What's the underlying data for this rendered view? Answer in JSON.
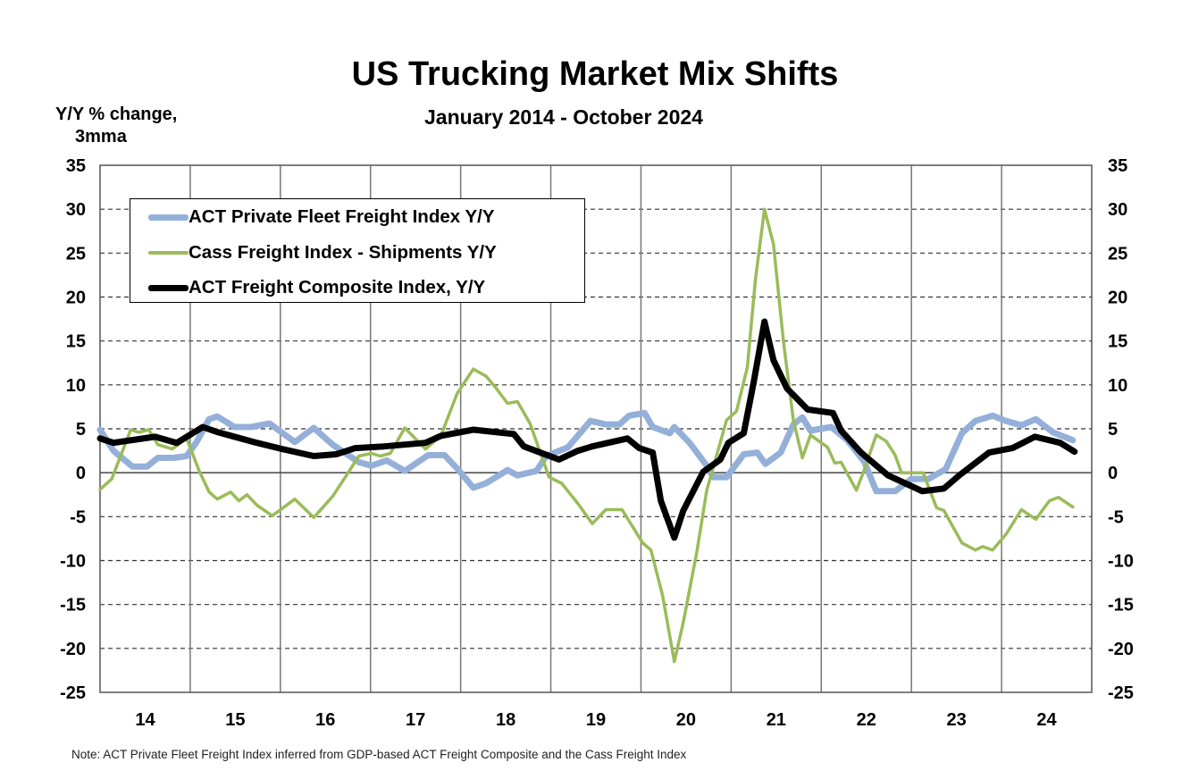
{
  "chart_data": {
    "type": "line",
    "title": "US Trucking Market Mix Shifts",
    "subtitle": "January 2014 - October 2024",
    "ylabel": [
      "Y/Y % change,",
      "3mma"
    ],
    "xlabel": "",
    "ylim": [
      -25,
      35
    ],
    "xlim": [
      2014,
      2025
    ],
    "yticks": [
      "35",
      "30",
      "25",
      "20",
      "15",
      "10",
      "5",
      "0",
      "-5",
      "-10",
      "-15",
      "-20",
      "-25"
    ],
    "xticks": [
      "14",
      "15",
      "16",
      "17",
      "18",
      "19",
      "20",
      "21",
      "22",
      "23",
      "24"
    ],
    "grid": true,
    "legend_position": "top-left",
    "note": "Note: ACT Private Fleet Freight Index inferred from GDP-based ACT Freight Composite and the Cass Freight Index",
    "series": [
      {
        "name": "ACT Private Fleet Freight Index Y/Y",
        "color": "#94b0d9",
        "width": 7,
        "points": [
          [
            2014.0,
            4.9
          ],
          [
            2014.15,
            2.5
          ],
          [
            2014.36,
            0.7
          ],
          [
            2014.52,
            0.7
          ],
          [
            2014.64,
            1.7
          ],
          [
            2014.82,
            1.7
          ],
          [
            2014.96,
            1.9
          ],
          [
            2015.07,
            3.5
          ],
          [
            2015.21,
            6.1
          ],
          [
            2015.3,
            6.4
          ],
          [
            2015.49,
            5.2
          ],
          [
            2015.67,
            5.2
          ],
          [
            2015.88,
            5.6
          ],
          [
            2016.16,
            3.5
          ],
          [
            2016.37,
            5.1
          ],
          [
            2016.58,
            3.2
          ],
          [
            2016.87,
            1.2
          ],
          [
            2017.01,
            0.8
          ],
          [
            2017.18,
            1.4
          ],
          [
            2017.38,
            0.2
          ],
          [
            2017.64,
            2.0
          ],
          [
            2017.82,
            2.0
          ],
          [
            2017.96,
            0.5
          ],
          [
            2018.14,
            -1.7
          ],
          [
            2018.28,
            -1.2
          ],
          [
            2018.52,
            0.3
          ],
          [
            2018.63,
            -0.3
          ],
          [
            2018.84,
            0.2
          ],
          [
            2018.95,
            1.9
          ],
          [
            2019.19,
            2.9
          ],
          [
            2019.44,
            5.9
          ],
          [
            2019.61,
            5.5
          ],
          [
            2019.76,
            5.5
          ],
          [
            2019.87,
            6.5
          ],
          [
            2020.04,
            6.8
          ],
          [
            2020.13,
            5.2
          ],
          [
            2020.32,
            4.5
          ],
          [
            2020.37,
            5.2
          ],
          [
            2020.54,
            3.4
          ],
          [
            2020.73,
            0.8
          ],
          [
            2020.8,
            -0.5
          ],
          [
            2020.95,
            -0.5
          ],
          [
            2021.14,
            2.1
          ],
          [
            2021.29,
            2.3
          ],
          [
            2021.38,
            1.0
          ],
          [
            2021.55,
            2.3
          ],
          [
            2021.69,
            5.5
          ],
          [
            2021.79,
            6.3
          ],
          [
            2021.88,
            4.8
          ],
          [
            2022.11,
            5.2
          ],
          [
            2022.29,
            3.7
          ],
          [
            2022.48,
            1.2
          ],
          [
            2022.61,
            -2.1
          ],
          [
            2022.82,
            -2.1
          ],
          [
            2023.0,
            -0.7
          ],
          [
            2023.19,
            -0.7
          ],
          [
            2023.38,
            0.4
          ],
          [
            2023.56,
            4.5
          ],
          [
            2023.71,
            5.9
          ],
          [
            2023.9,
            6.5
          ],
          [
            2024.05,
            5.9
          ],
          [
            2024.22,
            5.4
          ],
          [
            2024.38,
            6.1
          ],
          [
            2024.57,
            4.6
          ],
          [
            2024.79,
            3.7
          ]
        ]
      },
      {
        "name": "Cass Freight Index - Shipments Y/Y",
        "color": "#9bbb59",
        "width": 3.5,
        "points": [
          [
            2014.0,
            -1.9
          ],
          [
            2014.13,
            -0.7
          ],
          [
            2014.34,
            4.9
          ],
          [
            2014.43,
            4.6
          ],
          [
            2014.54,
            4.9
          ],
          [
            2014.64,
            3.2
          ],
          [
            2014.8,
            2.7
          ],
          [
            2014.96,
            3.9
          ],
          [
            2015.1,
            0.2
          ],
          [
            2015.21,
            -2.2
          ],
          [
            2015.3,
            -3.0
          ],
          [
            2015.45,
            -2.2
          ],
          [
            2015.54,
            -3.2
          ],
          [
            2015.63,
            -2.5
          ],
          [
            2015.74,
            -3.7
          ],
          [
            2015.91,
            -4.9
          ],
          [
            2016.16,
            -3.0
          ],
          [
            2016.37,
            -5.1
          ],
          [
            2016.58,
            -2.7
          ],
          [
            2016.72,
            -0.5
          ],
          [
            2016.87,
            1.9
          ],
          [
            2017.01,
            2.2
          ],
          [
            2017.11,
            1.9
          ],
          [
            2017.22,
            2.2
          ],
          [
            2017.38,
            5.1
          ],
          [
            2017.61,
            2.7
          ],
          [
            2017.78,
            4.2
          ],
          [
            2017.96,
            9.0
          ],
          [
            2018.14,
            11.8
          ],
          [
            2018.28,
            11.0
          ],
          [
            2018.38,
            9.8
          ],
          [
            2018.52,
            7.9
          ],
          [
            2018.63,
            8.1
          ],
          [
            2018.77,
            5.6
          ],
          [
            2018.98,
            -0.5
          ],
          [
            2019.12,
            -1.2
          ],
          [
            2019.3,
            -3.5
          ],
          [
            2019.46,
            -5.8
          ],
          [
            2019.61,
            -4.2
          ],
          [
            2019.79,
            -4.2
          ],
          [
            2020.02,
            -8.0
          ],
          [
            2020.11,
            -8.8
          ],
          [
            2020.24,
            -14
          ],
          [
            2020.37,
            -21.5
          ],
          [
            2020.47,
            -17
          ],
          [
            2020.62,
            -9
          ],
          [
            2020.73,
            -2
          ],
          [
            2020.84,
            2
          ],
          [
            2020.95,
            6.0
          ],
          [
            2021.06,
            7.0
          ],
          [
            2021.18,
            12
          ],
          [
            2021.27,
            22
          ],
          [
            2021.37,
            30
          ],
          [
            2021.47,
            26
          ],
          [
            2021.58,
            15
          ],
          [
            2021.69,
            6
          ],
          [
            2021.79,
            1.7
          ],
          [
            2021.88,
            4.3
          ],
          [
            2022.07,
            2.9
          ],
          [
            2022.15,
            1.1
          ],
          [
            2022.22,
            1.2
          ],
          [
            2022.39,
            -2.0
          ],
          [
            2022.48,
            0.4
          ],
          [
            2022.61,
            4.3
          ],
          [
            2022.72,
            3.6
          ],
          [
            2022.82,
            2.0
          ],
          [
            2022.89,
            0
          ],
          [
            2023.13,
            0
          ],
          [
            2023.28,
            -4.0
          ],
          [
            2023.36,
            -4.3
          ],
          [
            2023.56,
            -8.0
          ],
          [
            2023.71,
            -8.8
          ],
          [
            2023.79,
            -8.4
          ],
          [
            2023.9,
            -8.8
          ],
          [
            2024.05,
            -7
          ],
          [
            2024.22,
            -4.2
          ],
          [
            2024.38,
            -5.3
          ],
          [
            2024.53,
            -3.2
          ],
          [
            2024.63,
            -2.8
          ],
          [
            2024.79,
            -3.9
          ]
        ]
      },
      {
        "name": "ACT Freight Composite Index, Y/Y",
        "color": "#000000",
        "width": 7,
        "points": [
          [
            2014.0,
            3.9
          ],
          [
            2014.15,
            3.4
          ],
          [
            2014.61,
            4.1
          ],
          [
            2014.85,
            3.4
          ],
          [
            2015.14,
            5.2
          ],
          [
            2015.31,
            4.6
          ],
          [
            2015.74,
            3.4
          ],
          [
            2016.02,
            2.7
          ],
          [
            2016.37,
            1.9
          ],
          [
            2016.62,
            2.1
          ],
          [
            2016.83,
            2.8
          ],
          [
            2017.15,
            3.0
          ],
          [
            2017.61,
            3.4
          ],
          [
            2017.78,
            4.2
          ],
          [
            2018.14,
            4.9
          ],
          [
            2018.59,
            4.4
          ],
          [
            2018.7,
            3.0
          ],
          [
            2019.09,
            1.5
          ],
          [
            2019.3,
            2.5
          ],
          [
            2019.46,
            3.0
          ],
          [
            2019.85,
            3.9
          ],
          [
            2019.98,
            2.8
          ],
          [
            2020.13,
            2.3
          ],
          [
            2020.22,
            -3.2
          ],
          [
            2020.37,
            -7.4
          ],
          [
            2020.47,
            -4.3
          ],
          [
            2020.69,
            0.1
          ],
          [
            2020.88,
            1.5
          ],
          [
            2020.97,
            3.4
          ],
          [
            2021.14,
            4.5
          ],
          [
            2021.25,
            10.3
          ],
          [
            2021.37,
            17.2
          ],
          [
            2021.47,
            12.8
          ],
          [
            2021.62,
            9.6
          ],
          [
            2021.85,
            7.2
          ],
          [
            2022.13,
            6.8
          ],
          [
            2022.22,
            4.8
          ],
          [
            2022.44,
            2.3
          ],
          [
            2022.74,
            -0.3
          ],
          [
            2023.12,
            -2.1
          ],
          [
            2023.36,
            -1.8
          ],
          [
            2023.53,
            -0.3
          ],
          [
            2023.86,
            2.3
          ],
          [
            2024.12,
            2.8
          ],
          [
            2024.37,
            4.1
          ],
          [
            2024.65,
            3.4
          ],
          [
            2024.81,
            2.4
          ]
        ]
      }
    ]
  }
}
